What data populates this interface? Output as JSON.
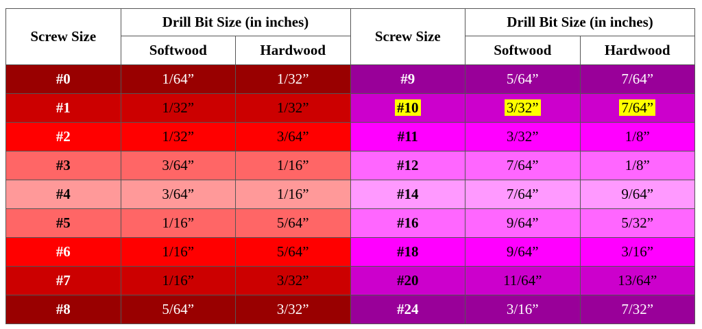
{
  "header": {
    "groups": [
      {
        "screw": "Screw Size",
        "drill": "Drill Bit Size (in inches)",
        "softwood": "Softwood",
        "hardwood": "Hardwood"
      },
      {
        "screw": "Screw Size",
        "drill": "Drill Bit Size (in inches)",
        "softwood": "Softwood",
        "hardwood": "Hardwood"
      }
    ]
  },
  "table": {
    "rows": [
      [
        "#0",
        "1/64”",
        "1/32”",
        "#9",
        "5/64”",
        "7/64”"
      ],
      [
        "#1",
        "1/32”",
        "1/32”",
        "#10",
        "3/32”",
        "7/64”"
      ],
      [
        "#2",
        "1/32”",
        "3/64”",
        "#11",
        "3/32”",
        "1/8”"
      ],
      [
        "#3",
        "3/64”",
        "1/16”",
        "#12",
        "7/64”",
        "1/8”"
      ],
      [
        "#4",
        "3/64”",
        "1/16”",
        "#14",
        "7/64”",
        "9/64”"
      ],
      [
        "#5",
        "1/16”",
        "5/64”",
        "#16",
        "9/64”",
        "5/32”"
      ],
      [
        "#6",
        "1/16”",
        "5/64”",
        "#18",
        "9/64”",
        "3/16”"
      ],
      [
        "#7",
        "1/16”",
        "3/32”",
        "#20",
        "11/64”",
        "13/64”"
      ],
      [
        "#8",
        "5/64”",
        "3/32”",
        "#24",
        "3/16”",
        "7/32”"
      ]
    ]
  }
}
